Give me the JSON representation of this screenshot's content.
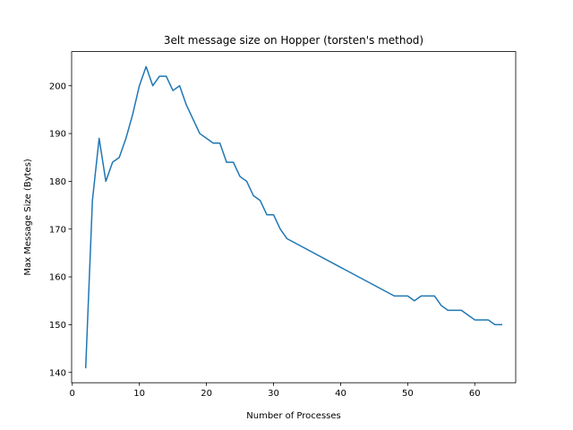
{
  "chart_data": {
    "type": "line",
    "title": "3elt message size on Hopper (torsten's method)",
    "xlabel": "Number of Processes",
    "ylabel": "Max Message Size (Bytes)",
    "xlim": [
      -0.1,
      66.1
    ],
    "ylim": [
      137.85,
      207.15
    ],
    "xticks": [
      0,
      10,
      20,
      30,
      40,
      50,
      60
    ],
    "yticks": [
      140,
      150,
      160,
      170,
      180,
      190,
      200
    ],
    "grid": false,
    "series": [
      {
        "color": "#1f77b4",
        "x": [
          2,
          3,
          4,
          5,
          6,
          7,
          8,
          9,
          10,
          11,
          12,
          13,
          14,
          15,
          16,
          17,
          18,
          19,
          20,
          21,
          22,
          23,
          24,
          25,
          26,
          27,
          28,
          29,
          30,
          31,
          32,
          48,
          49,
          50,
          51,
          52,
          53,
          54,
          55,
          56,
          57,
          58,
          59,
          60,
          61,
          62,
          63,
          64
        ],
        "y": [
          141,
          176,
          189,
          180,
          184,
          185,
          189,
          194,
          200,
          204,
          200,
          202,
          202,
          199,
          200,
          196,
          193,
          190,
          189,
          188,
          188,
          184,
          184,
          181,
          180,
          177,
          176,
          173,
          173,
          170,
          168,
          156,
          156,
          156,
          155,
          156,
          156,
          156,
          154,
          153,
          153,
          153,
          152,
          151,
          151,
          151,
          150,
          150
        ]
      }
    ]
  }
}
